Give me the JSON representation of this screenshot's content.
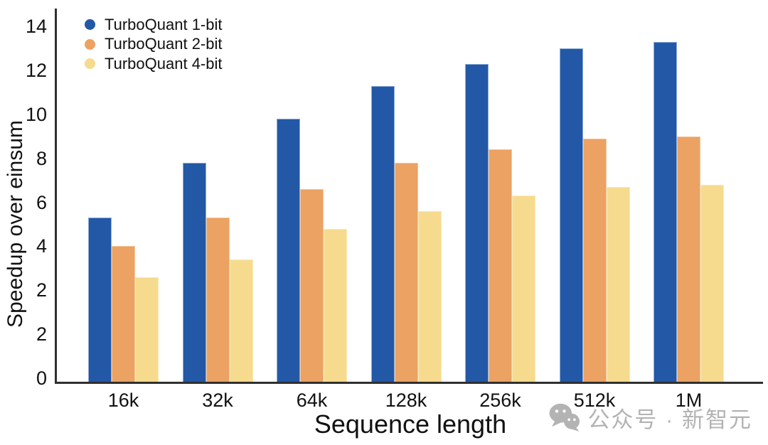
{
  "chart_data": {
    "type": "bar",
    "title": "",
    "xlabel": "Sequence length",
    "ylabel": "Speedup over einsum",
    "categories": [
      "16k",
      "32k",
      "64k",
      "128k",
      "256k",
      "512k",
      "1M"
    ],
    "series": [
      {
        "name": "TurboQuant 1-bit",
        "color": "#2258a6",
        "edge_color": "#8fadd9",
        "values": [
          5.3,
          7.8,
          9.8,
          11.3,
          12.3,
          13.0,
          13.3
        ]
      },
      {
        "name": "TurboQuant 2-bit",
        "color": "#eba263",
        "edge_color": "#f3c79c",
        "values": [
          4.0,
          5.3,
          6.6,
          7.8,
          8.4,
          8.9,
          9.0
        ]
      },
      {
        "name": "TurboQuant 4-bit",
        "color": "#f6db8e",
        "edge_color": "#faeab8",
        "values": [
          2.6,
          3.4,
          4.8,
          5.6,
          6.3,
          6.7,
          6.8
        ]
      }
    ],
    "ytick_labels_top_to_bottom": [
      "14",
      "12",
      "10",
      "8",
      "6",
      "4",
      "2",
      "2",
      "0"
    ],
    "ylim": [
      0,
      14
    ],
    "grid": false,
    "legend_position": "top-left"
  },
  "watermark": {
    "icon": "wechat-icon",
    "text": "公众号 · 新智元",
    "color": "#b3b3b3"
  },
  "colors": {
    "axis": "#303030",
    "text": "#111111",
    "background": "#ffffff"
  }
}
